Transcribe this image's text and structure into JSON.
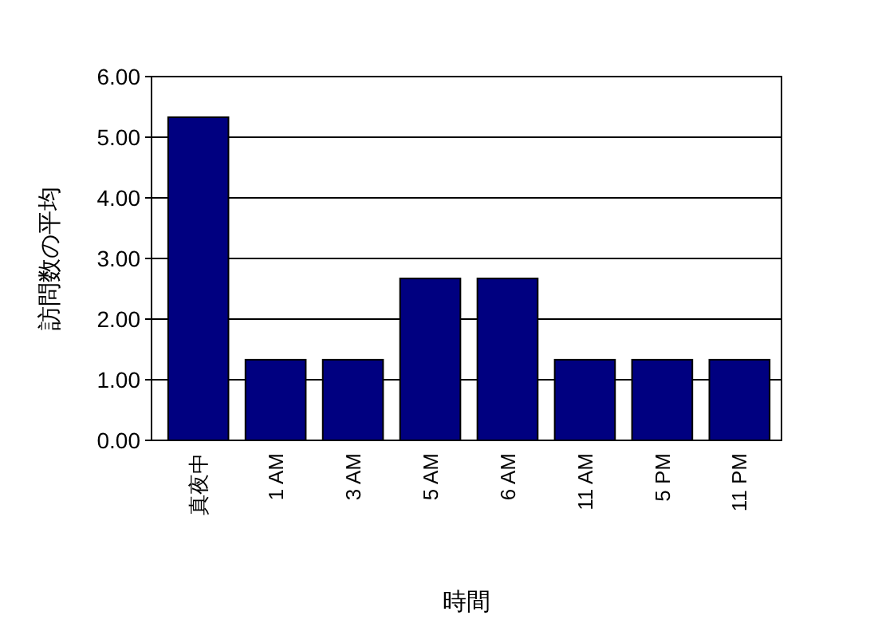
{
  "chart_data": {
    "type": "bar",
    "xlabel": "時間",
    "ylabel": "訪問数の平均",
    "categories": [
      "真夜中",
      "1 AM",
      "3 AM",
      "5 AM",
      "6 AM",
      "11 AM",
      "5 PM",
      "11 PM"
    ],
    "values": [
      5.33,
      1.33,
      1.33,
      2.67,
      2.67,
      1.33,
      1.33,
      1.33
    ],
    "color": "#000080",
    "ylim": [
      0,
      6
    ],
    "yticks": [
      {
        "value": 0,
        "label": "0.00"
      },
      {
        "value": 1,
        "label": "1.00"
      },
      {
        "value": 2,
        "label": "2.00"
      },
      {
        "value": 3,
        "label": "3.00"
      },
      {
        "value": 4,
        "label": "4.00"
      },
      {
        "value": 5,
        "label": "5.00"
      },
      {
        "value": 6,
        "label": "6.00"
      }
    ],
    "grid": "y"
  }
}
